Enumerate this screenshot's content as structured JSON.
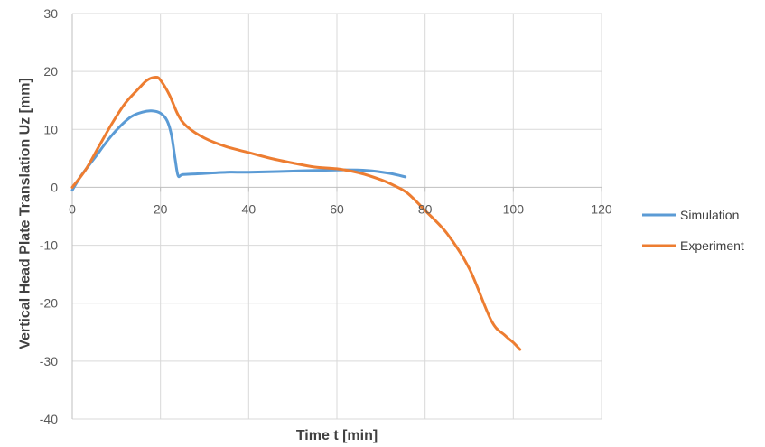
{
  "chart_data": {
    "type": "line",
    "title": "",
    "xlabel": "Time t [min]",
    "ylabel": "Vertical Head Plate Translation Uz [mm]",
    "xlim": [
      0,
      120
    ],
    "ylim": [
      -40,
      30
    ],
    "x_ticks": [
      0,
      20,
      40,
      60,
      80,
      100,
      120
    ],
    "y_ticks": [
      -40,
      -30,
      -20,
      -10,
      0,
      10,
      20,
      30
    ],
    "grid": true,
    "legend_position": "right",
    "series": [
      {
        "name": "Simulation",
        "color": "#5B9BD5",
        "x": [
          0,
          2,
          5,
          9,
          13,
          16,
          18,
          20,
          21.5,
          22.5,
          23.3,
          24,
          25,
          28,
          35,
          40,
          50,
          60,
          67,
          72,
          75.5
        ],
        "y": [
          -0.5,
          2,
          5,
          9,
          12,
          13,
          13.2,
          12.8,
          11.5,
          9,
          5,
          2,
          2.2,
          2.3,
          2.6,
          2.6,
          2.8,
          3.0,
          2.9,
          2.4,
          1.8
        ]
      },
      {
        "name": "Experiment",
        "color": "#ED7D31",
        "x": [
          0,
          3,
          6,
          9,
          12,
          15,
          17,
          19,
          20,
          22,
          24,
          26,
          30,
          35,
          40,
          45,
          50,
          55,
          60,
          65,
          70,
          73,
          76,
          80,
          85,
          90,
          95,
          98,
          100,
          101.5
        ],
        "y": [
          0,
          3,
          7,
          11,
          14.5,
          17,
          18.5,
          19,
          18.5,
          16,
          12.5,
          10.5,
          8.5,
          7,
          6,
          5,
          4.2,
          3.5,
          3.2,
          2.5,
          1.3,
          0.3,
          -1,
          -4,
          -8,
          -14,
          -23,
          -25.5,
          -26.8,
          -28
        ]
      }
    ]
  }
}
